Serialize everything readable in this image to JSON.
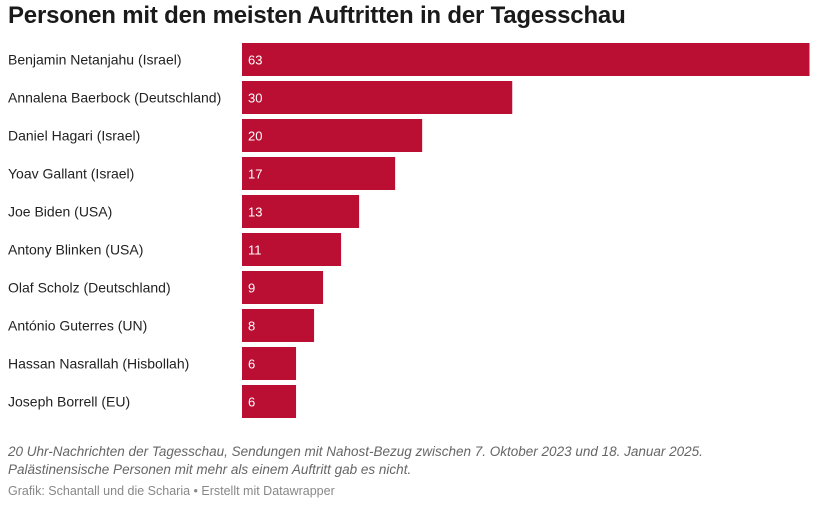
{
  "title": "Personen mit den meisten Auftritten in der Tagesschau",
  "notes": {
    "line1": "20 Uhr-Nachrichten der Tagesschau, Sendungen mit Nahost-Bezug zwischen 7. Oktober 2023 und 18. Januar 2025.",
    "line2": "Palästinensische Personen mit mehr als einem Auftritt gab es nicht."
  },
  "credit": "Grafik: Schantall und die Scharia • Erstellt mit Datawrapper",
  "colors": {
    "bar": "#bb0e33",
    "value_text": "#ffffff"
  },
  "chart_data": {
    "type": "bar",
    "orientation": "horizontal",
    "categories": [
      "Benjamin Netanjahu (Israel)",
      "Annalena Baerbock (Deutschland)",
      "Daniel Hagari (Israel)",
      "Yoav Gallant (Israel)",
      "Joe Biden (USA)",
      "Antony Blinken (USA)",
      "Olaf Scholz (Deutschland)",
      "António Guterres (UN)",
      "Hassan Nasrallah (Hisbollah)",
      "Joseph Borrell (EU)"
    ],
    "values": [
      63,
      30,
      20,
      17,
      13,
      11,
      9,
      8,
      6,
      6
    ],
    "xlim": [
      0,
      63
    ],
    "grid": false,
    "legend": "none"
  }
}
